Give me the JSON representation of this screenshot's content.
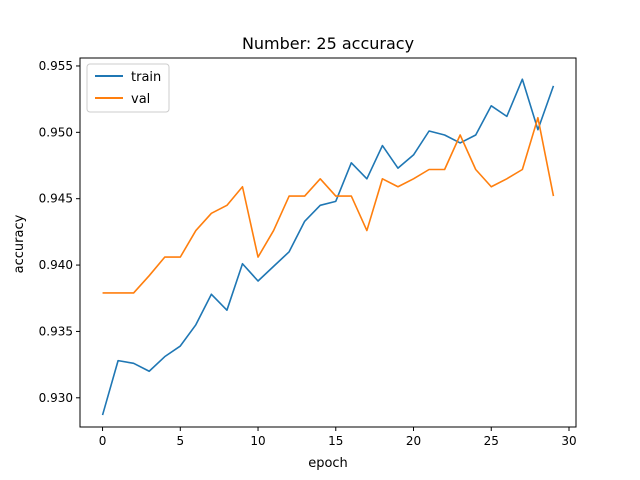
{
  "chart_data": {
    "type": "line",
    "title": "Number: 25 accuracy",
    "xlabel": "epoch",
    "ylabel": "accuracy",
    "xlim": [
      -1.45,
      30.45
    ],
    "ylim": [
      0.9278,
      0.9556
    ],
    "xticks": [
      0,
      5,
      10,
      15,
      20,
      25,
      30
    ],
    "yticks": [
      0.93,
      0.935,
      0.94,
      0.945,
      0.95,
      0.955
    ],
    "ytick_labels": [
      "0.930",
      "0.935",
      "0.940",
      "0.945",
      "0.950",
      "0.955"
    ],
    "legend_position": "upper-left",
    "grid": false,
    "x": [
      0,
      1,
      2,
      3,
      4,
      5,
      6,
      7,
      8,
      9,
      10,
      11,
      12,
      13,
      14,
      15,
      16,
      17,
      18,
      19,
      20,
      21,
      22,
      23,
      24,
      25,
      26,
      27,
      28,
      29
    ],
    "series": [
      {
        "name": "train",
        "color": "#1f77b4",
        "values": [
          0.9287,
          0.9328,
          0.9326,
          0.932,
          0.9331,
          0.9339,
          0.9355,
          0.9378,
          0.9366,
          0.9401,
          0.9388,
          0.9399,
          0.941,
          0.9433,
          0.9445,
          0.9448,
          0.9477,
          0.9465,
          0.949,
          0.9473,
          0.9483,
          0.9501,
          0.9498,
          0.9492,
          0.9498,
          0.952,
          0.9512,
          0.954,
          0.9502,
          0.9535
        ]
      },
      {
        "name": "val",
        "color": "#ff7f0e",
        "values": [
          0.9379,
          0.9379,
          0.9379,
          0.9392,
          0.9406,
          0.9406,
          0.9426,
          0.9439,
          0.9445,
          0.9459,
          0.9406,
          0.9426,
          0.9452,
          0.9452,
          0.9465,
          0.9452,
          0.9452,
          0.9426,
          0.9465,
          0.9459,
          0.9465,
          0.9472,
          0.9472,
          0.9498,
          0.9472,
          0.9459,
          0.9465,
          0.9472,
          0.9511,
          0.9452
        ]
      }
    ]
  }
}
